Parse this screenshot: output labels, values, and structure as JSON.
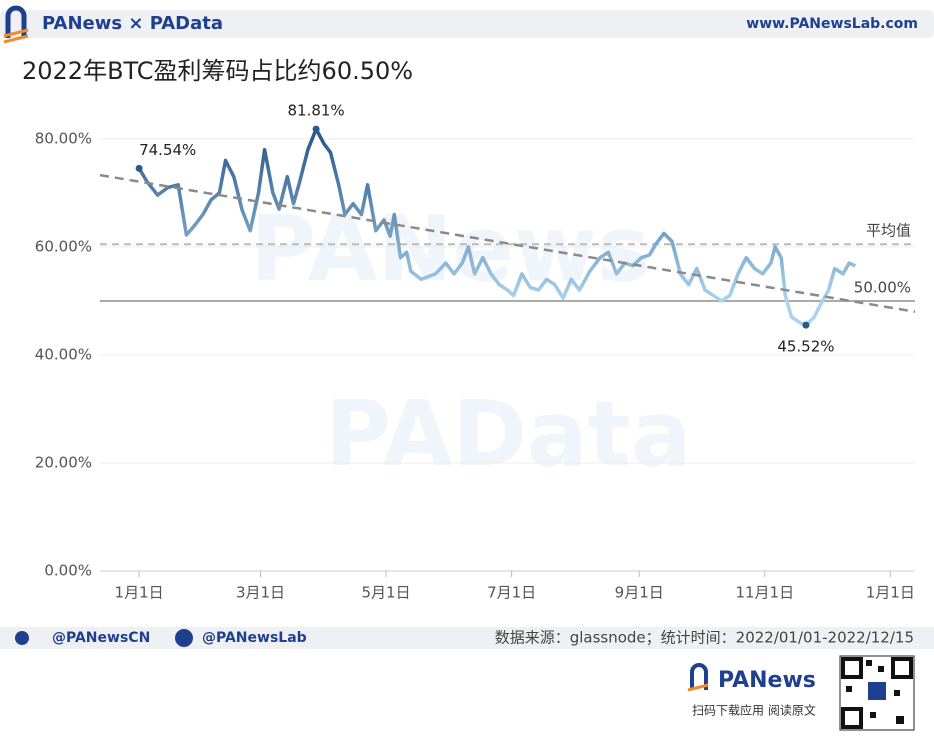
{
  "header": {
    "brand": "PANews × PAData",
    "site": "www.PANewsLab.com"
  },
  "watermarks": [
    "PANews",
    "PAData"
  ],
  "chart_data": {
    "type": "line",
    "title": "2022年BTC盈利筹码占比约60.50%",
    "x": [
      "2022-01-01",
      "2022-01-05",
      "2022-01-10",
      "2022-01-15",
      "2022-01-20",
      "2022-01-24",
      "2022-01-28",
      "2022-02-01",
      "2022-02-05",
      "2022-02-09",
      "2022-02-12",
      "2022-02-16",
      "2022-02-20",
      "2022-02-24",
      "2022-02-28",
      "2022-03-03",
      "2022-03-07",
      "2022-03-10",
      "2022-03-14",
      "2022-03-17",
      "2022-03-20",
      "2022-03-24",
      "2022-03-28",
      "2022-04-01",
      "2022-04-04",
      "2022-04-08",
      "2022-04-11",
      "2022-04-15",
      "2022-04-19",
      "2022-04-22",
      "2022-04-26",
      "2022-04-30",
      "2022-05-03",
      "2022-05-05",
      "2022-05-08",
      "2022-05-11",
      "2022-05-13",
      "2022-05-18",
      "2022-05-25",
      "2022-05-30",
      "2022-06-03",
      "2022-06-07",
      "2022-06-10",
      "2022-06-13",
      "2022-06-17",
      "2022-06-21",
      "2022-06-25",
      "2022-06-29",
      "2022-07-02",
      "2022-07-06",
      "2022-07-10",
      "2022-07-14",
      "2022-07-18",
      "2022-07-22",
      "2022-07-26",
      "2022-07-30",
      "2022-08-03",
      "2022-08-08",
      "2022-08-13",
      "2022-08-17",
      "2022-08-21",
      "2022-08-25",
      "2022-08-29",
      "2022-09-02",
      "2022-09-06",
      "2022-09-09",
      "2022-09-13",
      "2022-09-17",
      "2022-09-21",
      "2022-09-25",
      "2022-09-29",
      "2022-10-03",
      "2022-10-07",
      "2022-10-11",
      "2022-10-15",
      "2022-10-19",
      "2022-10-23",
      "2022-10-27",
      "2022-10-31",
      "2022-11-04",
      "2022-11-06",
      "2022-11-09",
      "2022-11-11",
      "2022-11-14",
      "2022-11-18",
      "2022-11-21",
      "2022-11-25",
      "2022-11-29",
      "2022-12-02",
      "2022-12-05",
      "2022-12-09",
      "2022-12-12",
      "2022-12-15"
    ],
    "values": [
      74.54,
      72,
      69.6,
      71,
      71.5,
      62.2,
      64,
      66,
      68.7,
      70,
      76,
      73,
      66.9,
      63,
      70,
      78,
      70,
      67,
      73,
      68,
      72,
      78,
      81.81,
      79,
      77.5,
      71.5,
      66,
      68,
      66,
      71.5,
      63,
      65,
      62,
      66,
      58,
      59,
      55.5,
      54,
      55,
      57,
      55,
      57,
      60,
      55,
      58,
      55,
      53,
      52,
      51,
      55,
      52.5,
      52,
      54,
      53,
      50.5,
      54,
      52,
      55.5,
      58,
      59,
      55,
      57,
      56.5,
      58,
      58.5,
      60.5,
      62.5,
      61,
      55,
      53,
      56,
      52,
      51,
      50,
      51,
      55,
      58,
      56,
      55,
      57,
      60,
      58,
      51,
      47,
      46,
      45.52,
      47,
      50,
      52,
      56,
      55,
      57,
      56.5
    ],
    "color_high": "#2c5a8c",
    "color_low": "#a9d3ee",
    "xlim": [
      "2021-12-13",
      "2023-01-13"
    ],
    "xticks": [
      {
        "value": "2022-01-01",
        "label": "1月1日"
      },
      {
        "value": "2022-03-01",
        "label": "3月1日"
      },
      {
        "value": "2022-05-01",
        "label": "5月1日"
      },
      {
        "value": "2022-07-01",
        "label": "7月1日"
      },
      {
        "value": "2022-09-01",
        "label": "9月1日"
      },
      {
        "value": "2022-11-01",
        "label": "11月1日"
      },
      {
        "value": "2023-01-01",
        "label": "1月1日"
      }
    ],
    "ylim": [
      0,
      83.5
    ],
    "yticks": [
      {
        "value": 0,
        "label": "0.00%"
      },
      {
        "value": 20,
        "label": "20.00%"
      },
      {
        "value": 40,
        "label": "40.00%"
      },
      {
        "value": 60,
        "label": "60.00%"
      },
      {
        "value": 80,
        "label": "80.00%"
      }
    ],
    "grid": true,
    "reference_lines": [
      {
        "value": 60.5,
        "label": "平均值",
        "style": "dashed"
      },
      {
        "value": 50,
        "label": "50.00%",
        "style": "solid"
      }
    ],
    "trend": {
      "x": [
        "2021-12-13",
        "2023-01-13"
      ],
      "values": [
        73.3,
        48.0
      ]
    },
    "annotations": [
      {
        "label": "74.54%",
        "x": "2022-01-01",
        "value": 74.54
      },
      {
        "label": "81.81%",
        "x": "2022-03-28",
        "value": 81.81
      },
      {
        "label": "45.52%",
        "x": "2022-11-21",
        "value": 45.52
      }
    ]
  },
  "footer": {
    "twitter": "@PANewsCN",
    "facebook": "@PANewsLab",
    "source": "数据来源：glassnode；统计时间：2022/01/01-2022/12/15",
    "app_brand": "PANews",
    "app_hint": "扫码下载应用  阅读原文"
  }
}
